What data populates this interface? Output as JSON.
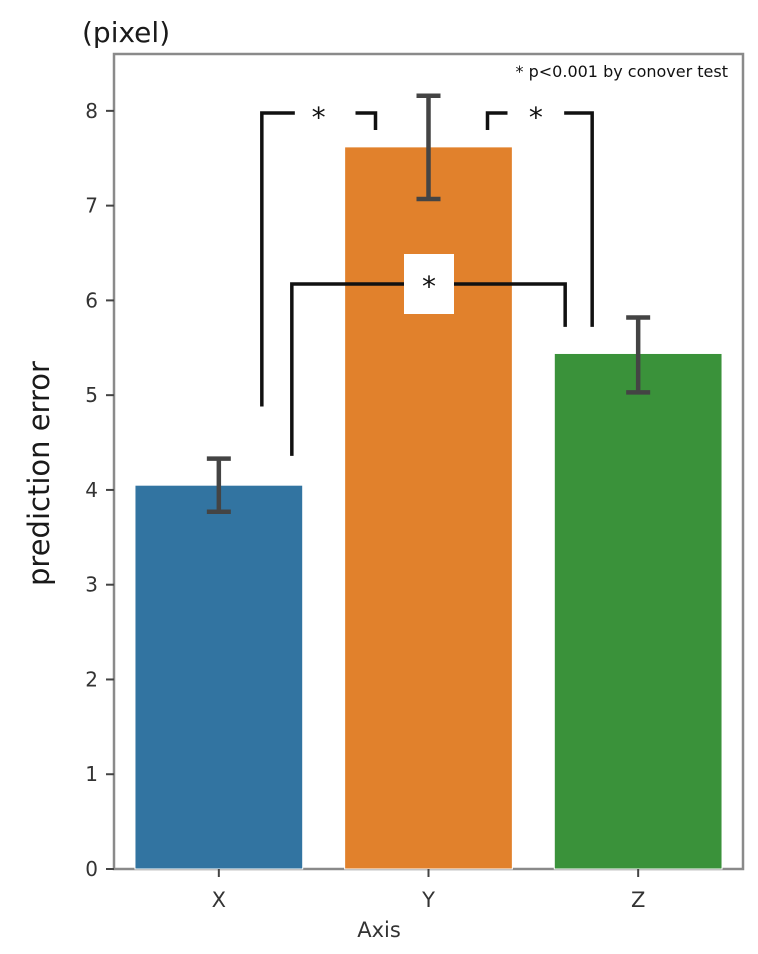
{
  "figure": {
    "unit_label": "(pixel)",
    "note": "* p<0.001 by conover test"
  },
  "chart_data": {
    "type": "bar",
    "categories": [
      "X",
      "Y",
      "Z"
    ],
    "values": [
      4.05,
      7.62,
      5.44
    ],
    "error_low": [
      3.77,
      7.07,
      5.03
    ],
    "error_high": [
      4.33,
      8.16,
      5.82
    ],
    "colors": [
      "#3274a1",
      "#e1812c",
      "#3a923a"
    ],
    "xlabel": "Axis",
    "ylabel": "prediction error",
    "ylim": [
      0,
      8.6
    ],
    "yticks": [
      0,
      1,
      2,
      3,
      4,
      5,
      6,
      7,
      8
    ],
    "grid": false,
    "significance": [
      {
        "pair": [
          "X",
          "Y"
        ],
        "label": "*"
      },
      {
        "pair": [
          "Y",
          "Z"
        ],
        "label": "*"
      },
      {
        "pair": [
          "X",
          "Z"
        ],
        "label": "*"
      }
    ]
  }
}
